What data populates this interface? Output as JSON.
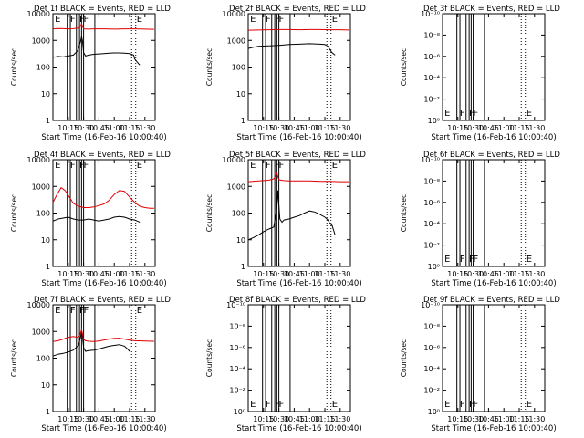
{
  "figure": {
    "background": "#ffffff",
    "event_color": "#000000",
    "lld_color": "#e00000"
  },
  "common": {
    "ylabel": "Counts/sec",
    "xlabel": "Start Time (16-Feb-16 10:00:40)",
    "x_ticks": [
      "10:15",
      "10:30",
      "10:45",
      "11:00",
      "11:15",
      "11:30"
    ],
    "x_tick_minutes": [
      15,
      30,
      45,
      60,
      75,
      90
    ],
    "xlim_minutes": [
      0,
      100
    ],
    "solid_event_lines_minutes": [
      14,
      17,
      23,
      26,
      28,
      30,
      41
    ],
    "dotted_event_lines_minutes": [
      77,
      81
    ],
    "flag_markers": [
      {
        "label": "E",
        "minute": 1
      },
      {
        "label": "F",
        "minute": 16
      },
      {
        "label": "F",
        "minute": 25
      },
      {
        "label": "F",
        "minute": 29
      },
      {
        "label": "E",
        "minute": 81
      }
    ]
  },
  "chart_data": [
    {
      "type": "line",
      "title": "Det 1f BLACK = Events, RED = LLD",
      "yscale": "log",
      "ylim": [
        1,
        10000
      ],
      "y_ticks": [
        "1",
        "10",
        "100",
        "1000",
        "10000"
      ],
      "series": [
        {
          "name": "Events",
          "color": "#000000",
          "x": [
            0,
            5,
            10,
            15,
            20,
            24,
            27,
            28,
            29,
            30,
            32,
            35,
            40,
            45,
            50,
            55,
            60,
            65,
            70,
            75,
            79,
            80,
            84,
            85
          ],
          "y": [
            230,
            250,
            240,
            260,
            280,
            400,
            900,
            1400,
            900,
            350,
            260,
            280,
            300,
            310,
            320,
            330,
            340,
            340,
            330,
            320,
            280,
            200,
            130,
            120
          ]
        },
        {
          "name": "LLD",
          "color": "#e00000",
          "x": [
            0,
            5,
            10,
            15,
            20,
            25,
            27,
            28,
            29,
            30,
            35,
            40,
            50,
            60,
            70,
            80,
            90,
            99
          ],
          "y": [
            2700,
            2800,
            2750,
            2700,
            2750,
            2900,
            3400,
            4200,
            3300,
            2700,
            2650,
            2700,
            2700,
            2650,
            2700,
            2700,
            2650,
            2600
          ]
        }
      ]
    },
    {
      "type": "line",
      "title": "Det 2f BLACK = Events, RED = LLD",
      "yscale": "log",
      "ylim": [
        1,
        10000
      ],
      "y_ticks": [
        "1",
        "10",
        "100",
        "1000",
        "10000"
      ],
      "series": [
        {
          "name": "Events",
          "color": "#000000",
          "x": [
            0,
            5,
            10,
            20,
            30,
            40,
            50,
            60,
            65,
            70,
            75,
            78,
            80,
            82,
            84,
            85
          ],
          "y": [
            500,
            550,
            600,
            620,
            650,
            700,
            720,
            750,
            740,
            720,
            700,
            600,
            450,
            350,
            300,
            280
          ]
        },
        {
          "name": "LLD",
          "color": "#e00000",
          "x": [
            0,
            10,
            20,
            30,
            40,
            50,
            60,
            70,
            80,
            90,
            99
          ],
          "y": [
            2400,
            2450,
            2500,
            2550,
            2550,
            2500,
            2550,
            2550,
            2500,
            2500,
            2450
          ]
        }
      ]
    },
    {
      "type": "line",
      "title": "Det 3f BLACK = Events, RED = LLD",
      "yscale": "log",
      "ylim": [
        1e-10,
        1
      ],
      "y_ticks": [
        "10⁰",
        "10⁻²",
        "10⁻⁴",
        "10⁻⁶",
        "10⁻⁸",
        "10⁻¹⁰"
      ],
      "series": []
    },
    {
      "type": "line",
      "title": "Det 4f BLACK = Events, RED = LLD",
      "yscale": "log",
      "ylim": [
        1,
        10000
      ],
      "y_ticks": [
        "1",
        "10",
        "100",
        "1000",
        "10000"
      ],
      "series": [
        {
          "name": "Events",
          "color": "#000000",
          "x": [
            0,
            5,
            10,
            15,
            20,
            25,
            30,
            35,
            40,
            45,
            50,
            55,
            60,
            65,
            70,
            75,
            80,
            85
          ],
          "y": [
            50,
            60,
            65,
            70,
            60,
            55,
            55,
            60,
            55,
            50,
            55,
            60,
            70,
            75,
            70,
            60,
            55,
            45
          ]
        },
        {
          "name": "LLD",
          "color": "#e00000",
          "x": [
            0,
            4,
            8,
            12,
            16,
            20,
            25,
            30,
            35,
            40,
            45,
            50,
            55,
            60,
            65,
            70,
            75,
            80,
            85,
            90,
            95,
            99
          ],
          "y": [
            250,
            500,
            900,
            700,
            400,
            230,
            180,
            160,
            160,
            170,
            190,
            220,
            300,
            500,
            700,
            650,
            400,
            250,
            180,
            160,
            150,
            150
          ]
        }
      ]
    },
    {
      "type": "line",
      "title": "Det 5f BLACK = Events, RED = LLD",
      "yscale": "log",
      "ylim": [
        1,
        10000
      ],
      "y_ticks": [
        "1",
        "10",
        "100",
        "1000",
        "10000"
      ],
      "series": [
        {
          "name": "Events",
          "color": "#000000",
          "x": [
            0,
            5,
            10,
            15,
            20,
            25,
            28,
            29,
            30,
            31,
            33,
            35,
            40,
            45,
            50,
            55,
            60,
            65,
            70,
            75,
            78,
            80,
            82,
            84,
            85
          ],
          "y": [
            10,
            12,
            15,
            20,
            25,
            30,
            150,
            700,
            200,
            60,
            45,
            55,
            60,
            70,
            80,
            100,
            120,
            110,
            90,
            70,
            55,
            40,
            35,
            20,
            15
          ]
        },
        {
          "name": "LLD",
          "color": "#e00000",
          "x": [
            0,
            10,
            20,
            25,
            27,
            28,
            29,
            30,
            32,
            35,
            40,
            50,
            60,
            70,
            80,
            90,
            99
          ],
          "y": [
            1500,
            1600,
            1700,
            1900,
            2500,
            3200,
            2300,
            1800,
            1700,
            1650,
            1600,
            1600,
            1600,
            1550,
            1550,
            1500,
            1500
          ]
        }
      ]
    },
    {
      "type": "line",
      "title": "Det 6f BLACK = Events, RED = LLD",
      "yscale": "log",
      "ylim": [
        1e-10,
        1
      ],
      "y_ticks": [
        "10⁰",
        "10⁻²",
        "10⁻⁴",
        "10⁻⁶",
        "10⁻⁸",
        "10⁻¹⁰"
      ],
      "series": []
    },
    {
      "type": "line",
      "title": "Det 7f BLACK = Events, RED = LLD",
      "yscale": "log",
      "ylim": [
        1,
        10000
      ],
      "y_ticks": [
        "1",
        "10",
        "100",
        "1000",
        "10000"
      ],
      "series": [
        {
          "name": "Events",
          "color": "#000000",
          "x": [
            0,
            5,
            10,
            15,
            20,
            25,
            27,
            28,
            29,
            30,
            32,
            35,
            40,
            45,
            50,
            55,
            60,
            65,
            70,
            73,
            75
          ],
          "y": [
            120,
            140,
            150,
            170,
            200,
            300,
            600,
            1000,
            600,
            250,
            180,
            190,
            200,
            220,
            250,
            280,
            300,
            320,
            280,
            220,
            180
          ]
        },
        {
          "name": "LLD",
          "color": "#e00000",
          "x": [
            0,
            5,
            10,
            15,
            20,
            24,
            26,
            28,
            29,
            30,
            32,
            35,
            40,
            45,
            50,
            55,
            60,
            65,
            70,
            75,
            80,
            90,
            99
          ],
          "y": [
            420,
            450,
            520,
            600,
            650,
            600,
            700,
            1150,
            800,
            500,
            450,
            430,
            420,
            440,
            480,
            520,
            550,
            560,
            520,
            470,
            450,
            440,
            430
          ]
        }
      ]
    },
    {
      "type": "line",
      "title": "Det 8f BLACK = Events, RED = LLD",
      "yscale": "log",
      "ylim": [
        1e-10,
        1
      ],
      "y_ticks": [
        "10⁰",
        "10⁻²",
        "10⁻⁴",
        "10⁻⁶",
        "10⁻⁸",
        "10⁻¹⁰"
      ],
      "series": []
    },
    {
      "type": "line",
      "title": "Det 9f BLACK = Events, RED = LLD",
      "yscale": "log",
      "ylim": [
        1e-10,
        1
      ],
      "y_ticks": [
        "10⁰",
        "10⁻²",
        "10⁻⁴",
        "10⁻⁶",
        "10⁻⁸",
        "10⁻¹⁰"
      ],
      "series": []
    }
  ]
}
